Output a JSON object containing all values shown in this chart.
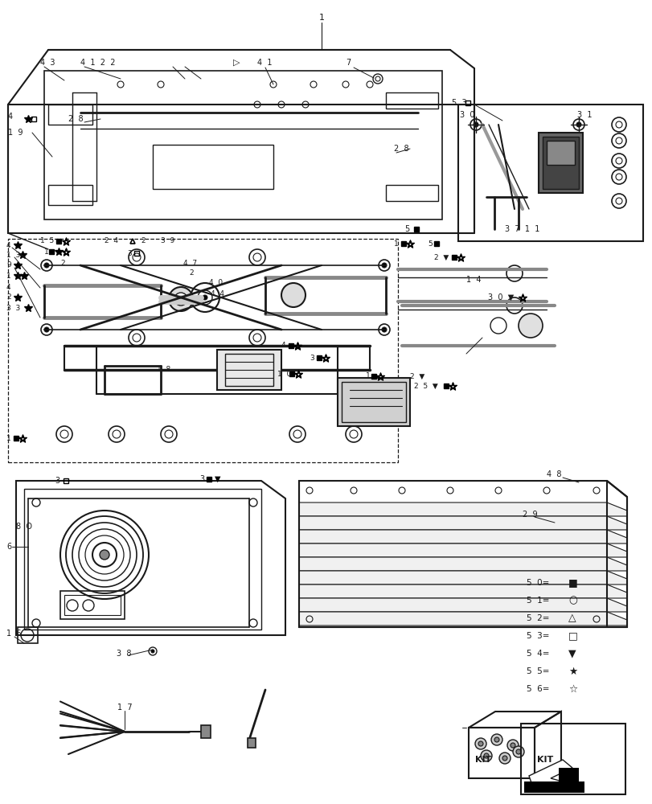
{
  "bg": "#ffffff",
  "lc": "#1a1a1a",
  "tc": "#1a1a1a",
  "legend": [
    [
      "5  0=",
      "■"
    ],
    [
      "5  1=",
      "○"
    ],
    [
      "5  2=",
      "△"
    ],
    [
      "5  3=",
      "□"
    ],
    [
      "5  4=",
      "▼"
    ],
    [
      "5  5=",
      "★"
    ],
    [
      "5  6=",
      "☆"
    ]
  ]
}
